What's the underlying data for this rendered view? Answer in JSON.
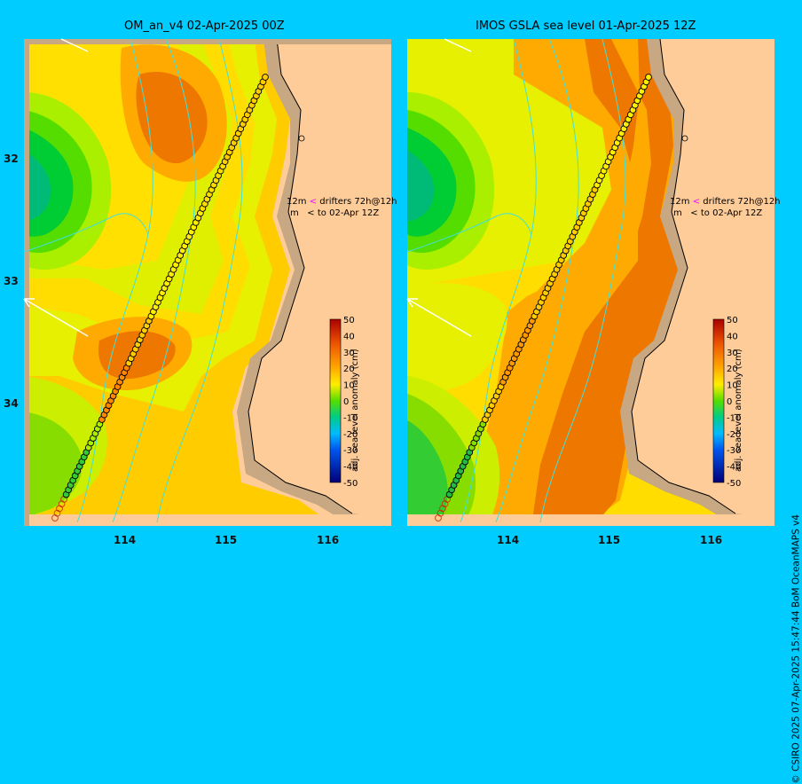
{
  "panels": [
    {
      "title": "OM_an_v4  02-Apr-2025 00Z",
      "colorbar_label": "adj. sea level anomaly (cm)",
      "annotation_line1": "12m",
      "annotation_arrow1": "<",
      "annotation_text1": "drifters 72h@12h",
      "annotation_line2": "m",
      "annotation_arrow2": "<",
      "annotation_text2": "to 02-Apr 12Z"
    },
    {
      "title": "IMOS GSLA sea level  01-Apr-2025 12Z",
      "colorbar_label": "adj. sea level anomaly (cm)",
      "annotation_line1": "12m",
      "annotation_arrow1": "<",
      "annotation_text1": "drifters 72h@12h",
      "annotation_line2": "m",
      "annotation_arrow2": "<",
      "annotation_text2": "to 02-Apr 12Z"
    }
  ],
  "lat_ticks": [
    "32",
    "33",
    "34"
  ],
  "lon_ticks": [
    "114",
    "115",
    "116"
  ],
  "colorbar_ticks": [
    "50",
    "40",
    "30",
    "20",
    "10",
    "0",
    "-10",
    "-20",
    "-30",
    "-40",
    "-50"
  ],
  "credit": "© CSIRO 2025   07-Apr-2025 15:47:44 BoM OceanMAPS v4",
  "colors": {
    "background": "#00ccff",
    "land": "#fecc99",
    "coast_shelf": "#c8a882",
    "contour": "#40e0e0"
  }
}
